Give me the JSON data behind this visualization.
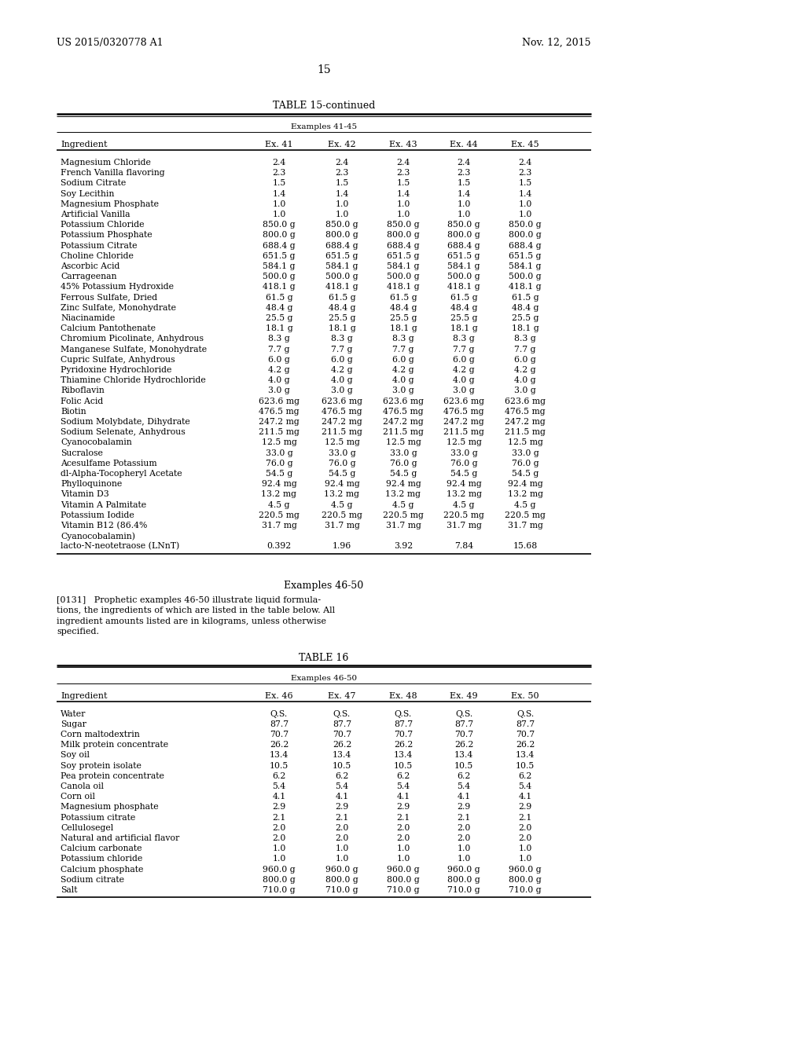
{
  "header_left": "US 2015/0320778 A1",
  "header_right": "Nov. 12, 2015",
  "page_number": "15",
  "table15_title": "TABLE 15-continued",
  "table15_subtitle": "Examples 41-45",
  "table15_rows": [
    [
      "Magnesium Chloride",
      "2.4",
      "2.4",
      "2.4",
      "2.4",
      "2.4"
    ],
    [
      "French Vanilla flavoring",
      "2.3",
      "2.3",
      "2.3",
      "2.3",
      "2.3"
    ],
    [
      "Sodium Citrate",
      "1.5",
      "1.5",
      "1.5",
      "1.5",
      "1.5"
    ],
    [
      "Soy Lecithin",
      "1.4",
      "1.4",
      "1.4",
      "1.4",
      "1.4"
    ],
    [
      "Magnesium Phosphate",
      "1.0",
      "1.0",
      "1.0",
      "1.0",
      "1.0"
    ],
    [
      "Artificial Vanilla",
      "1.0",
      "1.0",
      "1.0",
      "1.0",
      "1.0"
    ],
    [
      "Potassium Chloride",
      "850.0 g",
      "850.0 g",
      "850.0 g",
      "850.0 g",
      "850.0 g"
    ],
    [
      "Potassium Phosphate",
      "800.0 g",
      "800.0 g",
      "800.0 g",
      "800.0 g",
      "800.0 g"
    ],
    [
      "Potassium Citrate",
      "688.4 g",
      "688.4 g",
      "688.4 g",
      "688.4 g",
      "688.4 g"
    ],
    [
      "Choline Chloride",
      "651.5 g",
      "651.5 g",
      "651.5 g",
      "651.5 g",
      "651.5 g"
    ],
    [
      "Ascorbic Acid",
      "584.1 g",
      "584.1 g",
      "584.1 g",
      "584.1 g",
      "584.1 g"
    ],
    [
      "Carrageenan",
      "500.0 g",
      "500.0 g",
      "500.0 g",
      "500.0 g",
      "500.0 g"
    ],
    [
      "45% Potassium Hydroxide",
      "418.1 g",
      "418.1 g",
      "418.1 g",
      "418.1 g",
      "418.1 g"
    ],
    [
      "Ferrous Sulfate, Dried",
      "61.5 g",
      "61.5 g",
      "61.5 g",
      "61.5 g",
      "61.5 g"
    ],
    [
      "Zinc Sulfate, Monohydrate",
      "48.4 g",
      "48.4 g",
      "48.4 g",
      "48.4 g",
      "48.4 g"
    ],
    [
      "Niacinamide",
      "25.5 g",
      "25.5 g",
      "25.5 g",
      "25.5 g",
      "25.5 g"
    ],
    [
      "Calcium Pantothenate",
      "18.1 g",
      "18.1 g",
      "18.1 g",
      "18.1 g",
      "18.1 g"
    ],
    [
      "Chromium Picolinate, Anhydrous",
      "8.3 g",
      "8.3 g",
      "8.3 g",
      "8.3 g",
      "8.3 g"
    ],
    [
      "Manganese Sulfate, Monohydrate",
      "7.7 g",
      "7.7 g",
      "7.7 g",
      "7.7 g",
      "7.7 g"
    ],
    [
      "Cupric Sulfate, Anhydrous",
      "6.0 g",
      "6.0 g",
      "6.0 g",
      "6.0 g",
      "6.0 g"
    ],
    [
      "Pyridoxine Hydrochloride",
      "4.2 g",
      "4.2 g",
      "4.2 g",
      "4.2 g",
      "4.2 g"
    ],
    [
      "Thiamine Chloride Hydrochloride",
      "4.0 g",
      "4.0 g",
      "4.0 g",
      "4.0 g",
      "4.0 g"
    ],
    [
      "Riboflavin",
      "3.0 g",
      "3.0 g",
      "3.0 g",
      "3.0 g",
      "3.0 g"
    ],
    [
      "Folic Acid",
      "623.6 mg",
      "623.6 mg",
      "623.6 mg",
      "623.6 mg",
      "623.6 mg"
    ],
    [
      "Biotin",
      "476.5 mg",
      "476.5 mg",
      "476.5 mg",
      "476.5 mg",
      "476.5 mg"
    ],
    [
      "Sodium Molybdate, Dihydrate",
      "247.2 mg",
      "247.2 mg",
      "247.2 mg",
      "247.2 mg",
      "247.2 mg"
    ],
    [
      "Sodium Selenate, Anhydrous",
      "211.5 mg",
      "211.5 mg",
      "211.5 mg",
      "211.5 mg",
      "211.5 mg"
    ],
    [
      "Cyanocobalamin",
      "12.5 mg",
      "12.5 mg",
      "12.5 mg",
      "12.5 mg",
      "12.5 mg"
    ],
    [
      "Sucralose",
      "33.0 g",
      "33.0 g",
      "33.0 g",
      "33.0 g",
      "33.0 g"
    ],
    [
      "Acesulfame Potassium",
      "76.0 g",
      "76.0 g",
      "76.0 g",
      "76.0 g",
      "76.0 g"
    ],
    [
      "dl-Alpha-Tocopheryl Acetate",
      "54.5 g",
      "54.5 g",
      "54.5 g",
      "54.5 g",
      "54.5 g"
    ],
    [
      "Phylloquinone",
      "92.4 mg",
      "92.4 mg",
      "92.4 mg",
      "92.4 mg",
      "92.4 mg"
    ],
    [
      "Vitamin D3",
      "13.2 mg",
      "13.2 mg",
      "13.2 mg",
      "13.2 mg",
      "13.2 mg"
    ],
    [
      "Vitamin A Palmitate",
      "4.5 g",
      "4.5 g",
      "4.5 g",
      "4.5 g",
      "4.5 g"
    ],
    [
      "Potassium Iodide",
      "220.5 mg",
      "220.5 mg",
      "220.5 mg",
      "220.5 mg",
      "220.5 mg"
    ],
    [
      "Vitamin B12 (86.4%",
      "31.7 mg",
      "31.7 mg",
      "31.7 mg",
      "31.7 mg",
      "31.7 mg"
    ],
    [
      "Cyanocobalamin)",
      "",
      "",
      "",
      "",
      ""
    ],
    [
      "lacto-N-neotetraose (LNnT)",
      "0.392",
      "1.96",
      "3.92",
      "7.84",
      "15.68"
    ]
  ],
  "examples_46_50_title": "Examples 46-50",
  "paragraph_0131_line1": "[0131]   Prophetic examples 46-50 illustrate liquid formula-",
  "paragraph_0131_line2": "tions, the ingredients of which are listed in the table below. All",
  "paragraph_0131_line3": "ingredient amounts listed are in kilograms, unless otherwise",
  "paragraph_0131_line4": "specified.",
  "table16_title": "TABLE 16",
  "table16_subtitle": "Examples 46-50",
  "table16_rows": [
    [
      "Water",
      "Q.S.",
      "Q.S.",
      "Q.S.",
      "Q.S.",
      "Q.S."
    ],
    [
      "Sugar",
      "87.7",
      "87.7",
      "87.7",
      "87.7",
      "87.7"
    ],
    [
      "Corn maltodextrin",
      "70.7",
      "70.7",
      "70.7",
      "70.7",
      "70.7"
    ],
    [
      "Milk protein concentrate",
      "26.2",
      "26.2",
      "26.2",
      "26.2",
      "26.2"
    ],
    [
      "Soy oil",
      "13.4",
      "13.4",
      "13.4",
      "13.4",
      "13.4"
    ],
    [
      "Soy protein isolate",
      "10.5",
      "10.5",
      "10.5",
      "10.5",
      "10.5"
    ],
    [
      "Pea protein concentrate",
      "6.2",
      "6.2",
      "6.2",
      "6.2",
      "6.2"
    ],
    [
      "Canola oil",
      "5.4",
      "5.4",
      "5.4",
      "5.4",
      "5.4"
    ],
    [
      "Corn oil",
      "4.1",
      "4.1",
      "4.1",
      "4.1",
      "4.1"
    ],
    [
      "Magnesium phosphate",
      "2.9",
      "2.9",
      "2.9",
      "2.9",
      "2.9"
    ],
    [
      "Potassium citrate",
      "2.1",
      "2.1",
      "2.1",
      "2.1",
      "2.1"
    ],
    [
      "Cellulosegel",
      "2.0",
      "2.0",
      "2.0",
      "2.0",
      "2.0"
    ],
    [
      "Natural and artificial flavor",
      "2.0",
      "2.0",
      "2.0",
      "2.0",
      "2.0"
    ],
    [
      "Calcium carbonate",
      "1.0",
      "1.0",
      "1.0",
      "1.0",
      "1.0"
    ],
    [
      "Potassium chloride",
      "1.0",
      "1.0",
      "1.0",
      "1.0",
      "1.0"
    ],
    [
      "Calcium phosphate",
      "960.0 g",
      "960.0 g",
      "960.0 g",
      "960.0 g",
      "960.0 g"
    ],
    [
      "Sodium citrate",
      "800.0 g",
      "800.0 g",
      "800.0 g",
      "800.0 g",
      "800.0 g"
    ],
    [
      "Salt",
      "710.0 g",
      "710.0 g",
      "710.0 g",
      "710.0 g",
      "710.0 g"
    ]
  ],
  "bg_color": "#ffffff"
}
